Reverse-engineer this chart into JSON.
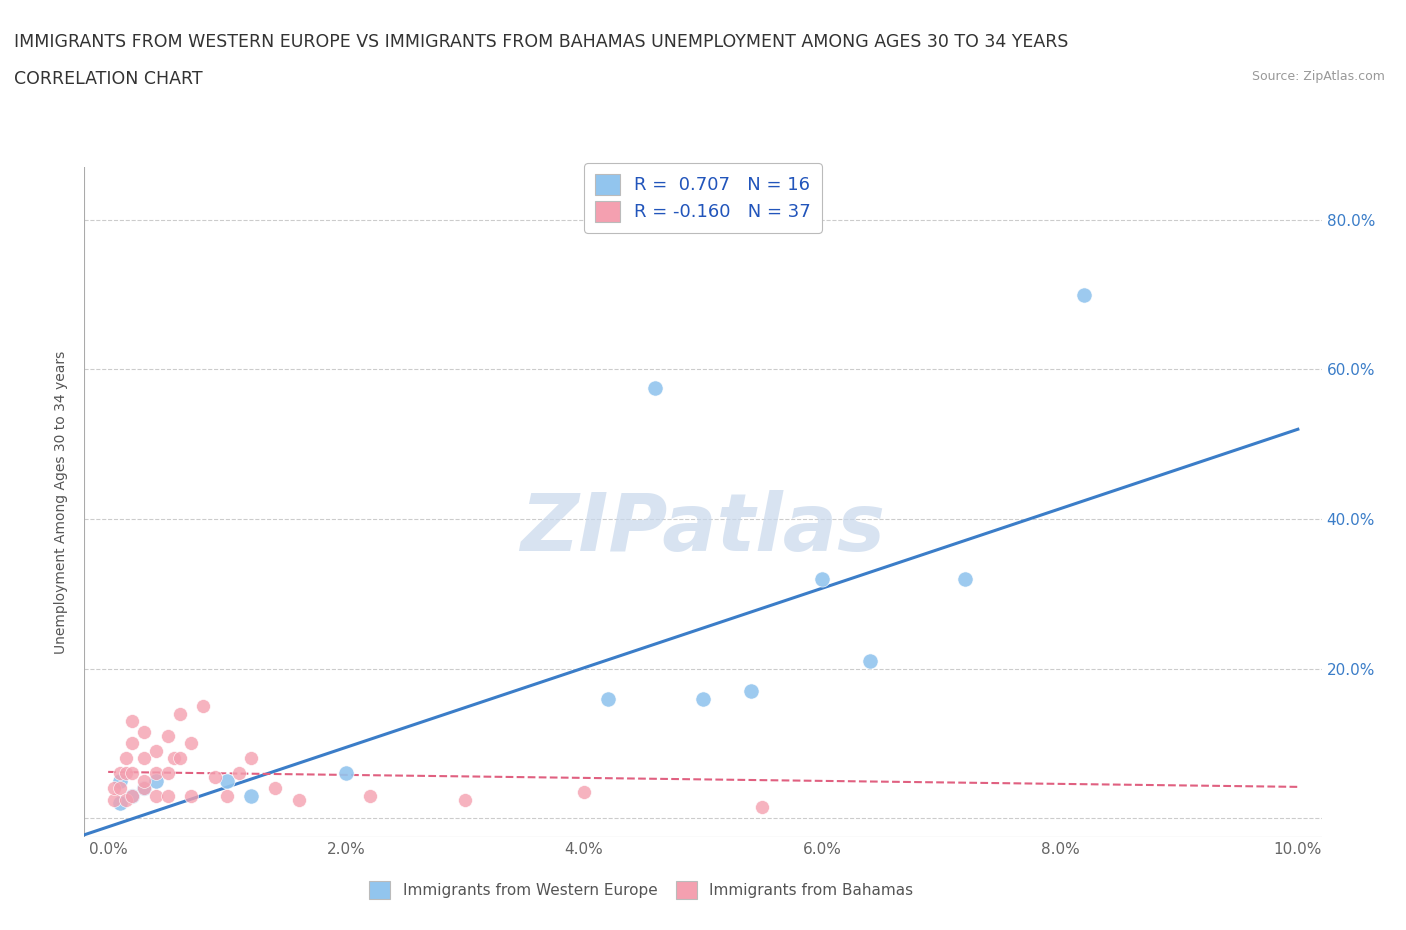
{
  "title_line1": "IMMIGRANTS FROM WESTERN EUROPE VS IMMIGRANTS FROM BAHAMAS UNEMPLOYMENT AMONG AGES 30 TO 34 YEARS",
  "title_line2": "CORRELATION CHART",
  "source_text": "Source: ZipAtlas.com",
  "ylabel": "Unemployment Among Ages 30 to 34 years",
  "watermark": "ZIPatlas",
  "legend_r1": "R =  0.707   N = 16",
  "legend_r2": "R = -0.160   N = 37",
  "blue_scatter_x": [
    0.001,
    0.001,
    0.002,
    0.003,
    0.004,
    0.01,
    0.012,
    0.02,
    0.042,
    0.046,
    0.05,
    0.054,
    0.06,
    0.064,
    0.072,
    0.082
  ],
  "blue_scatter_y": [
    0.02,
    0.05,
    0.03,
    0.04,
    0.05,
    0.05,
    0.03,
    0.06,
    0.16,
    0.575,
    0.16,
    0.17,
    0.32,
    0.21,
    0.32,
    0.7
  ],
  "pink_scatter_x": [
    0.0005,
    0.0005,
    0.001,
    0.001,
    0.0015,
    0.0015,
    0.0015,
    0.002,
    0.002,
    0.002,
    0.002,
    0.003,
    0.003,
    0.003,
    0.003,
    0.004,
    0.004,
    0.004,
    0.005,
    0.005,
    0.005,
    0.0055,
    0.006,
    0.006,
    0.007,
    0.007,
    0.008,
    0.009,
    0.01,
    0.011,
    0.012,
    0.014,
    0.016,
    0.022,
    0.03,
    0.04,
    0.055
  ],
  "pink_scatter_y": [
    0.025,
    0.04,
    0.04,
    0.06,
    0.025,
    0.06,
    0.08,
    0.03,
    0.06,
    0.1,
    0.13,
    0.04,
    0.05,
    0.08,
    0.115,
    0.03,
    0.06,
    0.09,
    0.03,
    0.06,
    0.11,
    0.08,
    0.08,
    0.14,
    0.03,
    0.1,
    0.15,
    0.055,
    0.03,
    0.06,
    0.08,
    0.04,
    0.025,
    0.03,
    0.025,
    0.035,
    0.015
  ],
  "blue_line_x": [
    -0.005,
    0.1
  ],
  "blue_line_y": [
    -0.038,
    0.52
  ],
  "pink_line_x": [
    0.0,
    0.1
  ],
  "pink_line_y": [
    0.062,
    0.042
  ],
  "xlim": [
    -0.002,
    0.102
  ],
  "ylim": [
    -0.025,
    0.87
  ],
  "xticks": [
    0.0,
    0.02,
    0.04,
    0.06,
    0.08,
    0.1
  ],
  "xtick_labels": [
    "0.0%",
    "2.0%",
    "4.0%",
    "6.0%",
    "8.0%",
    "10.0%"
  ],
  "yticks": [
    0.0,
    0.2,
    0.4,
    0.6,
    0.8
  ],
  "ytick_labels_right": [
    "",
    "20.0%",
    "40.0%",
    "60.0%",
    "80.0%"
  ],
  "blue_scatter_color": "#92C5EE",
  "blue_line_color": "#3B7DC8",
  "pink_scatter_color": "#F4A0B0",
  "pink_line_color": "#E06080",
  "blue_legend_color": "#92C5EE",
  "pink_legend_color": "#F4A0B0",
  "grid_color": "#CCCCCC",
  "bg_color": "#FFFFFF",
  "title_fontsize": 12.5,
  "axis_label_fontsize": 10,
  "tick_fontsize": 11,
  "right_tick_color": "#3B7DC8",
  "watermark_color": "#C8D8EC"
}
